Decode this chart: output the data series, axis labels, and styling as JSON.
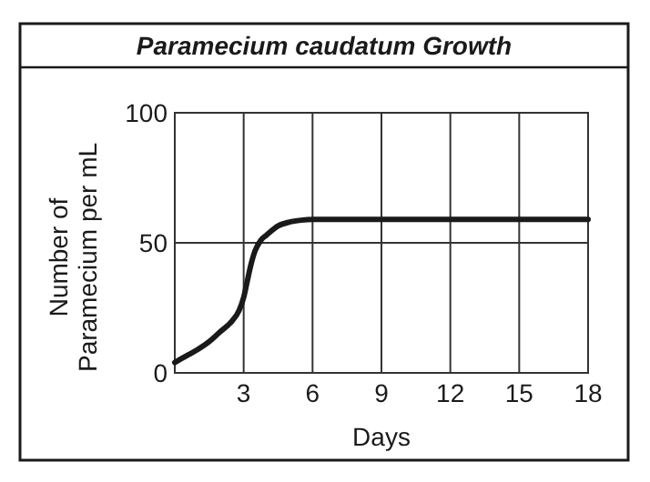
{
  "chart_data": {
    "type": "line",
    "title": "Paramecium caudatum Growth",
    "xlabel": "Days",
    "ylabel": "Number of Paramecium per mL",
    "x": [
      0,
      0.5,
      1,
      1.5,
      2,
      2.5,
      2.8,
      3,
      3.15,
      3.3,
      3.5,
      3.75,
      4,
      4.5,
      5,
      5.5,
      6,
      9,
      12,
      15,
      18
    ],
    "series": [
      {
        "color": "#1a1a1a",
        "values": [
          4,
          6.5,
          9,
          12,
          16,
          20,
          24,
          29,
          35,
          41,
          47,
          51,
          53,
          56.5,
          58,
          58.7,
          59,
          59,
          59,
          59,
          59
        ]
      }
    ],
    "xlim": [
      0,
      18
    ],
    "xticks": [
      3,
      6,
      9,
      12,
      15,
      18
    ],
    "ylim": [
      0,
      100
    ],
    "yticks": [
      0,
      50,
      100
    ],
    "grid": true,
    "marker": "none",
    "line_style": "solid"
  }
}
